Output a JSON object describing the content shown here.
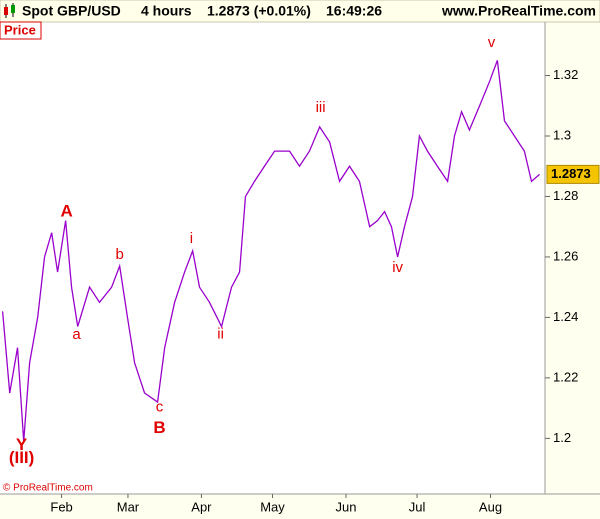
{
  "header": {
    "instrument": "Spot GBP/USD",
    "timeframe": "4 hours",
    "quote": "1.2873 (+0.01%)",
    "time": "16:49:26",
    "site": "www.ProRealTime.com"
  },
  "panel_label": "Price",
  "copyright": "© ProRealTime.com",
  "chart_data": {
    "type": "line",
    "series": [
      {
        "name": "Spot GBP/USD",
        "color": "#9900cc",
        "x": [
          6.1,
          9.1,
          12.4,
          15.0,
          17.5,
          20.9,
          23.8,
          26.8,
          29.3,
          32.7,
          35.2,
          37.8,
          42.8,
          47.0,
          52.1,
          55.5,
          58.8,
          61.8,
          66.0,
          71.5,
          74.5,
          78.7,
          82.9,
          86.3,
          89.2,
          93.4,
          98.5,
          102.7,
          106.1,
          108.6,
          112.4,
          116.6,
          120.9,
          127.2,
          131.4,
          135.6,
          139.9,
          144.1,
          148.3,
          152.5,
          156.7,
          161.0,
          164.3,
          167.3,
          170.2,
          172.8,
          175.7,
          179.1,
          182.0,
          185.4,
          189.6,
          193.9,
          196.8,
          199.8,
          203.1,
          207.4,
          211.6,
          214.9,
          217.9,
          222.1,
          226.3,
          229.3,
          232.7
        ],
        "values": [
          1.242,
          1.215,
          1.23,
          1.199,
          1.225,
          1.24,
          1.26,
          1.268,
          1.255,
          1.272,
          1.25,
          1.237,
          1.25,
          1.245,
          1.25,
          1.257,
          1.24,
          1.225,
          1.215,
          1.212,
          1.23,
          1.245,
          1.255,
          1.262,
          1.25,
          1.245,
          1.237,
          1.25,
          1.255,
          1.28,
          1.285,
          1.29,
          1.295,
          1.295,
          1.29,
          1.295,
          1.303,
          1.298,
          1.285,
          1.29,
          1.285,
          1.27,
          1.272,
          1.275,
          1.27,
          1.26,
          1.27,
          1.28,
          1.3,
          1.295,
          1.29,
          1.285,
          1.3,
          1.308,
          1.302,
          1.31,
          1.318,
          1.325,
          1.305,
          1.3,
          1.295,
          1.285,
          1.2873
        ]
      }
    ],
    "last_value": 1.2873,
    "xlim": [
      5,
      235
    ],
    "xticks": [
      {
        "value": 31,
        "label": "Feb"
      },
      {
        "value": 59,
        "label": "Mar"
      },
      {
        "value": 90,
        "label": "Apr"
      },
      {
        "value": 120,
        "label": "May"
      },
      {
        "value": 151,
        "label": "Jun"
      },
      {
        "value": 181,
        "label": "Jul"
      },
      {
        "value": 212,
        "label": "Aug"
      }
    ],
    "ylim": [
      1.1816,
      1.3377
    ],
    "yticks": [
      1.2,
      1.22,
      1.24,
      1.26,
      1.28,
      1.3,
      1.32
    ],
    "annotations": [
      {
        "text": "(III)",
        "x": 14.1,
        "y": 1.1934,
        "bold": true
      },
      {
        "text": "Y",
        "x": 14.1,
        "y": 1.1977,
        "bold": true
      },
      {
        "text": "A",
        "x": 33.1,
        "y": 1.2748,
        "bold": true
      },
      {
        "text": "a",
        "x": 37.3,
        "y": 1.2341,
        "bold": false
      },
      {
        "text": "b",
        "x": 55.5,
        "y": 1.2607,
        "bold": false
      },
      {
        "text": "c",
        "x": 72.3,
        "y": 1.2102,
        "bold": false
      },
      {
        "text": "B",
        "x": 72.3,
        "y": 1.2033,
        "bold": true
      },
      {
        "text": "i",
        "x": 85.8,
        "y": 1.2659,
        "bold": false
      },
      {
        "text": "ii",
        "x": 98.1,
        "y": 1.2344,
        "bold": false
      },
      {
        "text": "iii",
        "x": 140.3,
        "y": 1.3092,
        "bold": false
      },
      {
        "text": "iv",
        "x": 172.8,
        "y": 1.2564,
        "bold": false
      },
      {
        "text": "v",
        "x": 212.4,
        "y": 1.3308,
        "bold": false
      }
    ]
  }
}
